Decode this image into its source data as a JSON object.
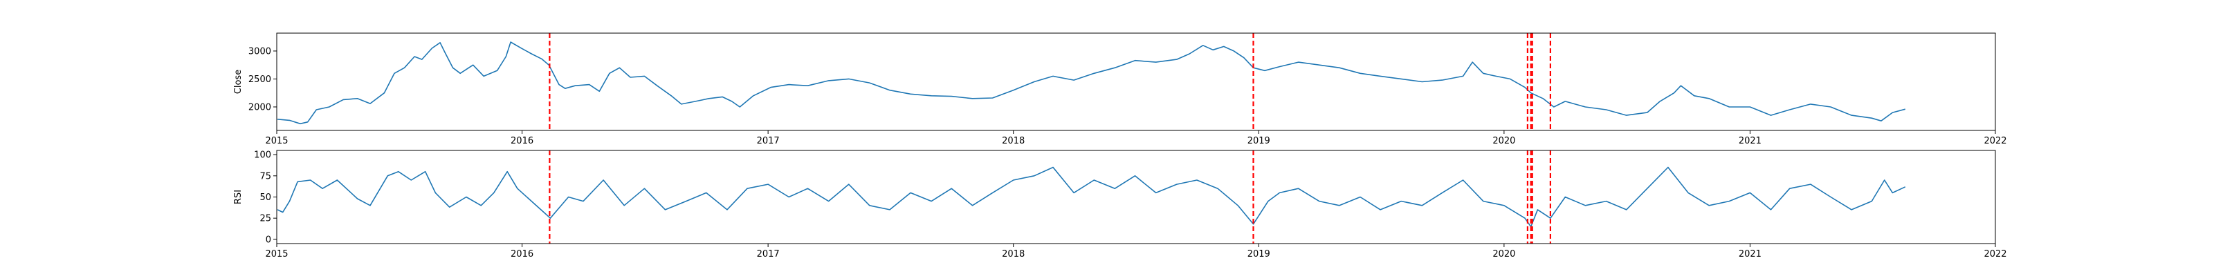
{
  "chart_data": [
    {
      "type": "line",
      "ylabel": "Close",
      "xlim": [
        "2015-01-01",
        "2022-01-01"
      ],
      "ylim": [
        1580,
        3320
      ],
      "xticks": [
        {
          "x": "2015-01-01",
          "label": "2015"
        },
        {
          "x": "2016-01-01",
          "label": "2016"
        },
        {
          "x": "2017-01-01",
          "label": "2017"
        },
        {
          "x": "2018-01-01",
          "label": "2018"
        },
        {
          "x": "2019-01-01",
          "label": "2019"
        },
        {
          "x": "2020-01-01",
          "label": "2020"
        },
        {
          "x": "2021-01-01",
          "label": "2021"
        },
        {
          "x": "2022-01-01",
          "label": "2022"
        }
      ],
      "yticks": [
        {
          "y": 2000,
          "label": "2000"
        },
        {
          "y": 2500,
          "label": "2500"
        },
        {
          "y": 3000,
          "label": "3000"
        }
      ],
      "grid": false,
      "series": [
        {
          "color": "#1f77b4",
          "points": [
            [
              "2015-01-02",
              1780
            ],
            [
              "2015-01-20",
              1760
            ],
            [
              "2015-02-05",
              1700
            ],
            [
              "2015-02-16",
              1730
            ],
            [
              "2015-03-01",
              1950
            ],
            [
              "2015-03-20",
              2000
            ],
            [
              "2015-04-10",
              2130
            ],
            [
              "2015-05-01",
              2150
            ],
            [
              "2015-05-20",
              2060
            ],
            [
              "2015-06-10",
              2250
            ],
            [
              "2015-06-25",
              2600
            ],
            [
              "2015-07-10",
              2700
            ],
            [
              "2015-07-25",
              2900
            ],
            [
              "2015-08-05",
              2850
            ],
            [
              "2015-08-20",
              3050
            ],
            [
              "2015-09-01",
              3150
            ],
            [
              "2015-09-08",
              2980
            ],
            [
              "2015-09-20",
              2700
            ],
            [
              "2015-10-01",
              2600
            ],
            [
              "2015-10-20",
              2750
            ],
            [
              "2015-11-05",
              2550
            ],
            [
              "2015-11-25",
              2650
            ],
            [
              "2015-12-08",
              2900
            ],
            [
              "2015-12-15",
              3160
            ],
            [
              "2015-12-31",
              3050
            ],
            [
              "2016-01-15",
              2950
            ],
            [
              "2016-01-30",
              2860
            ],
            [
              "2016-02-10",
              2750
            ],
            [
              "2016-02-25",
              2400
            ],
            [
              "2016-03-05",
              2330
            ],
            [
              "2016-03-20",
              2380
            ],
            [
              "2016-04-10",
              2400
            ],
            [
              "2016-04-25",
              2280
            ],
            [
              "2016-05-10",
              2600
            ],
            [
              "2016-05-25",
              2700
            ],
            [
              "2016-06-10",
              2530
            ],
            [
              "2016-07-01",
              2550
            ],
            [
              "2016-07-20",
              2380
            ],
            [
              "2016-08-10",
              2200
            ],
            [
              "2016-08-25",
              2050
            ],
            [
              "2016-09-15",
              2100
            ],
            [
              "2016-10-05",
              2150
            ],
            [
              "2016-10-25",
              2180
            ],
            [
              "2016-11-08",
              2100
            ],
            [
              "2016-11-20",
              2000
            ],
            [
              "2016-12-10",
              2200
            ],
            [
              "2017-01-05",
              2350
            ],
            [
              "2017-02-01",
              2400
            ],
            [
              "2017-03-01",
              2380
            ],
            [
              "2017-04-01",
              2470
            ],
            [
              "2017-05-01",
              2500
            ],
            [
              "2017-06-01",
              2430
            ],
            [
              "2017-07-01",
              2300
            ],
            [
              "2017-08-01",
              2230
            ],
            [
              "2017-09-01",
              2200
            ],
            [
              "2017-10-01",
              2190
            ],
            [
              "2017-11-01",
              2150
            ],
            [
              "2017-12-01",
              2160
            ],
            [
              "2018-01-01",
              2300
            ],
            [
              "2018-02-01",
              2450
            ],
            [
              "2018-03-01",
              2550
            ],
            [
              "2018-04-01",
              2480
            ],
            [
              "2018-05-01",
              2600
            ],
            [
              "2018-06-01",
              2700
            ],
            [
              "2018-07-01",
              2830
            ],
            [
              "2018-08-01",
              2800
            ],
            [
              "2018-09-01",
              2850
            ],
            [
              "2018-09-20",
              2950
            ],
            [
              "2018-10-10",
              3100
            ],
            [
              "2018-10-25",
              3020
            ],
            [
              "2018-11-10",
              3080
            ],
            [
              "2018-11-25",
              3000
            ],
            [
              "2018-12-10",
              2880
            ],
            [
              "2018-12-24",
              2700
            ],
            [
              "2019-01-10",
              2650
            ],
            [
              "2019-02-01",
              2720
            ],
            [
              "2019-03-01",
              2800
            ],
            [
              "2019-04-01",
              2750
            ],
            [
              "2019-05-01",
              2700
            ],
            [
              "2019-06-01",
              2600
            ],
            [
              "2019-07-01",
              2550
            ],
            [
              "2019-08-01",
              2500
            ],
            [
              "2019-09-01",
              2450
            ],
            [
              "2019-10-01",
              2480
            ],
            [
              "2019-11-01",
              2550
            ],
            [
              "2019-11-15",
              2800
            ],
            [
              "2019-12-01",
              2600
            ],
            [
              "2019-12-20",
              2550
            ],
            [
              "2020-01-10",
              2500
            ],
            [
              "2020-02-01",
              2350
            ],
            [
              "2020-02-10",
              2250
            ],
            [
              "2020-02-28",
              2150
            ],
            [
              "2020-03-15",
              2000
            ],
            [
              "2020-04-01",
              2100
            ],
            [
              "2020-05-01",
              2000
            ],
            [
              "2020-06-01",
              1950
            ],
            [
              "2020-07-01",
              1850
            ],
            [
              "2020-08-01",
              1900
            ],
            [
              "2020-08-20",
              2100
            ],
            [
              "2020-09-10",
              2250
            ],
            [
              "2020-09-20",
              2380
            ],
            [
              "2020-10-10",
              2200
            ],
            [
              "2020-11-01",
              2150
            ],
            [
              "2020-12-01",
              2000
            ],
            [
              "2021-01-01",
              2000
            ],
            [
              "2021-02-01",
              1850
            ],
            [
              "2021-03-01",
              1950
            ],
            [
              "2021-04-01",
              2050
            ],
            [
              "2021-05-01",
              2000
            ],
            [
              "2021-06-01",
              1850
            ],
            [
              "2021-07-01",
              1800
            ],
            [
              "2021-07-15",
              1750
            ],
            [
              "2021-08-01",
              1900
            ],
            [
              "2021-08-20",
              1960
            ]
          ]
        }
      ],
      "event_lines": {
        "color": "#ff0000",
        "x": [
          "2016-02-11",
          "2018-12-24",
          "2020-02-05",
          "2020-02-10",
          "2020-02-12",
          "2020-03-10"
        ]
      }
    },
    {
      "type": "line",
      "ylabel": "RSI",
      "xlim": [
        "2015-01-01",
        "2022-01-01"
      ],
      "ylim": [
        -5,
        105
      ],
      "xticks": [
        {
          "x": "2015-01-01",
          "label": "2015"
        },
        {
          "x": "2016-01-01",
          "label": "2016"
        },
        {
          "x": "2017-01-01",
          "label": "2017"
        },
        {
          "x": "2018-01-01",
          "label": "2018"
        },
        {
          "x": "2019-01-01",
          "label": "2019"
        },
        {
          "x": "2020-01-01",
          "label": "2020"
        },
        {
          "x": "2021-01-01",
          "label": "2021"
        },
        {
          "x": "2022-01-01",
          "label": "2022"
        }
      ],
      "yticks": [
        {
          "y": 0,
          "label": "0"
        },
        {
          "y": 25,
          "label": "25"
        },
        {
          "y": 50,
          "label": "50"
        },
        {
          "y": 75,
          "label": "75"
        },
        {
          "y": 100,
          "label": "100"
        }
      ],
      "grid": false,
      "series": [
        {
          "color": "#1f77b4",
          "points": [
            [
              "2015-01-02",
              35
            ],
            [
              "2015-01-10",
              32
            ],
            [
              "2015-01-20",
              45
            ],
            [
              "2015-02-01",
              68
            ],
            [
              "2015-02-20",
              70
            ],
            [
              "2015-03-10",
              60
            ],
            [
              "2015-04-01",
              70
            ],
            [
              "2015-05-01",
              48
            ],
            [
              "2015-05-20",
              40
            ],
            [
              "2015-06-15",
              75
            ],
            [
              "2015-07-01",
              80
            ],
            [
              "2015-07-20",
              70
            ],
            [
              "2015-08-10",
              80
            ],
            [
              "2015-08-25",
              55
            ],
            [
              "2015-09-15",
              38
            ],
            [
              "2015-10-10",
              50
            ],
            [
              "2015-11-01",
              40
            ],
            [
              "2015-11-20",
              55
            ],
            [
              "2015-12-10",
              80
            ],
            [
              "2015-12-25",
              60
            ],
            [
              "2016-01-15",
              45
            ],
            [
              "2016-02-05",
              30
            ],
            [
              "2016-02-12",
              25
            ],
            [
              "2016-03-10",
              50
            ],
            [
              "2016-04-01",
              45
            ],
            [
              "2016-05-01",
              70
            ],
            [
              "2016-06-01",
              40
            ],
            [
              "2016-07-01",
              60
            ],
            [
              "2016-08-01",
              35
            ],
            [
              "2016-09-01",
              45
            ],
            [
              "2016-10-01",
              55
            ],
            [
              "2016-11-01",
              35
            ],
            [
              "2016-12-01",
              60
            ],
            [
              "2017-01-01",
              65
            ],
            [
              "2017-02-01",
              50
            ],
            [
              "2017-03-01",
              60
            ],
            [
              "2017-04-01",
              45
            ],
            [
              "2017-05-01",
              65
            ],
            [
              "2017-06-01",
              40
            ],
            [
              "2017-07-01",
              35
            ],
            [
              "2017-08-01",
              55
            ],
            [
              "2017-09-01",
              45
            ],
            [
              "2017-10-01",
              60
            ],
            [
              "2017-11-01",
              40
            ],
            [
              "2017-12-01",
              55
            ],
            [
              "2018-01-01",
              70
            ],
            [
              "2018-02-01",
              75
            ],
            [
              "2018-03-01",
              85
            ],
            [
              "2018-04-01",
              55
            ],
            [
              "2018-05-01",
              70
            ],
            [
              "2018-06-01",
              60
            ],
            [
              "2018-07-01",
              75
            ],
            [
              "2018-08-01",
              55
            ],
            [
              "2018-09-01",
              65
            ],
            [
              "2018-10-01",
              70
            ],
            [
              "2018-11-01",
              60
            ],
            [
              "2018-12-01",
              40
            ],
            [
              "2018-12-24",
              18
            ],
            [
              "2019-01-15",
              45
            ],
            [
              "2019-02-01",
              55
            ],
            [
              "2019-03-01",
              60
            ],
            [
              "2019-04-01",
              45
            ],
            [
              "2019-05-01",
              40
            ],
            [
              "2019-06-01",
              50
            ],
            [
              "2019-07-01",
              35
            ],
            [
              "2019-08-01",
              45
            ],
            [
              "2019-09-01",
              40
            ],
            [
              "2019-10-01",
              55
            ],
            [
              "2019-11-01",
              70
            ],
            [
              "2019-12-01",
              45
            ],
            [
              "2020-01-01",
              40
            ],
            [
              "2020-02-01",
              25
            ],
            [
              "2020-02-10",
              15
            ],
            [
              "2020-02-20",
              35
            ],
            [
              "2020-03-10",
              25
            ],
            [
              "2020-04-01",
              50
            ],
            [
              "2020-05-01",
              40
            ],
            [
              "2020-06-01",
              45
            ],
            [
              "2020-07-01",
              35
            ],
            [
              "2020-08-01",
              60
            ],
            [
              "2020-09-01",
              85
            ],
            [
              "2020-10-01",
              55
            ],
            [
              "2020-11-01",
              40
            ],
            [
              "2020-12-01",
              45
            ],
            [
              "2021-01-01",
              55
            ],
            [
              "2021-02-01",
              35
            ],
            [
              "2021-03-01",
              60
            ],
            [
              "2021-04-01",
              65
            ],
            [
              "2021-05-01",
              50
            ],
            [
              "2021-06-01",
              35
            ],
            [
              "2021-07-01",
              45
            ],
            [
              "2021-07-20",
              70
            ],
            [
              "2021-08-01",
              55
            ],
            [
              "2021-08-20",
              62
            ]
          ]
        }
      ],
      "event_lines": {
        "color": "#ff0000",
        "x": [
          "2016-02-11",
          "2018-12-24",
          "2020-02-05",
          "2020-02-10",
          "2020-02-12",
          "2020-03-10"
        ]
      }
    }
  ]
}
